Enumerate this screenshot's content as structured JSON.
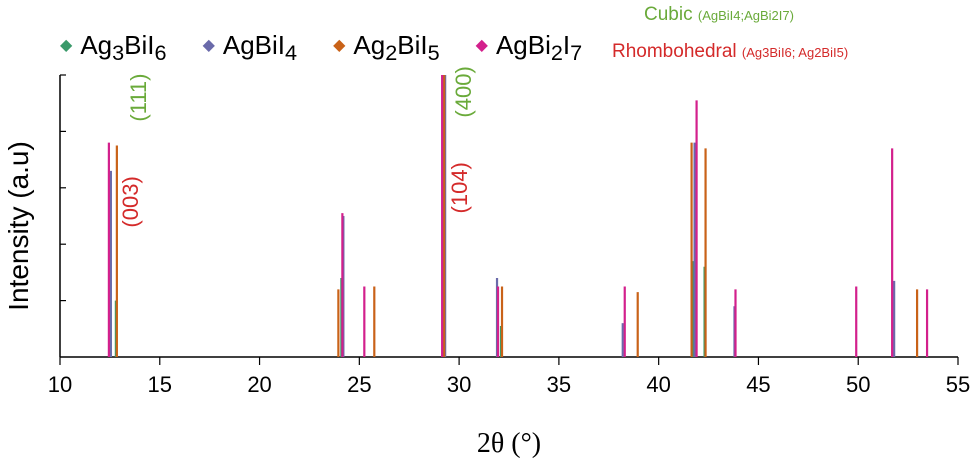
{
  "colors": {
    "Ag3BiI6": "#3a9a6a",
    "AgBiI4": "#6a6aaa",
    "Ag2BiI5": "#c96218",
    "AgBi2I7": "#d3208c",
    "cubic": "#6aaa3a",
    "rhombohedral": "#d42a2a"
  },
  "legend": [
    {
      "key": "Ag3BiI6",
      "base": "Ag",
      "sub1": "3",
      "mid": "BiI",
      "sub2": "6",
      "tail": "",
      "sub3": ""
    },
    {
      "key": "AgBiI4",
      "base": "AgBiI",
      "sub1": "4",
      "mid": "",
      "sub2": "",
      "tail": "",
      "sub3": ""
    },
    {
      "key": "Ag2BiI5",
      "base": "Ag",
      "sub1": "2",
      "mid": "BiI",
      "sub2": "5",
      "tail": "",
      "sub3": ""
    },
    {
      "key": "AgBi2I7",
      "base": "AgBi",
      "sub1": "2",
      "mid": "I",
      "sub2": "7",
      "tail": "",
      "sub3": ""
    }
  ],
  "phases": {
    "cubic_label": "Cubic",
    "cubic_detail": "(AgBiI4;AgBi2I7)",
    "rhombohedral_label": "Rhombohedral",
    "rhombohedral_detail": "(Ag3BiI6; Ag2BiI5)"
  },
  "chart_data": {
    "type": "bar",
    "xlabel": "2θ (°)",
    "ylabel": "Intensity (a.u)",
    "xlim": [
      10,
      55
    ],
    "ylim": [
      0,
      100
    ],
    "xticks": [
      10,
      15,
      20,
      25,
      30,
      35,
      40,
      45,
      50,
      55
    ],
    "series": [
      {
        "name": "Ag3BiI6",
        "x": [
          12.8,
          24.1,
          29.2,
          32.1,
          41.7,
          42.3
        ],
        "y": [
          20,
          28,
          100,
          11,
          34,
          32
        ]
      },
      {
        "name": "AgBiI4",
        "x": [
          12.55,
          24.2,
          29.3,
          31.9,
          38.2,
          41.8,
          43.8,
          51.8
        ],
        "y": [
          66,
          50,
          100,
          28,
          12,
          76,
          18,
          27
        ]
      },
      {
        "name": "Ag2BiI5",
        "x": [
          12.85,
          23.95,
          25.75,
          29.25,
          32.15,
          38.95,
          41.65,
          42.35,
          52.95
        ],
        "y": [
          75,
          24,
          25,
          100,
          25,
          23,
          76,
          74,
          24
        ]
      },
      {
        "name": "AgBi2I7",
        "x": [
          12.45,
          24.15,
          25.25,
          29.15,
          31.95,
          38.3,
          41.9,
          43.85,
          49.9,
          51.7,
          53.45
        ],
        "y": [
          76,
          51,
          25,
          100,
          25,
          25,
          91,
          24,
          25,
          74,
          24
        ]
      }
    ],
    "annotations": [
      {
        "text": "(003)",
        "x": 13.9,
        "y": 55,
        "phase": "rhombohedral"
      },
      {
        "text": "(111)",
        "x": 14.3,
        "y": 92,
        "phase": "cubic"
      },
      {
        "text": "(104)",
        "x": 30.4,
        "y": 60,
        "phase": "rhombohedral"
      },
      {
        "text": "(400)",
        "x": 30.6,
        "y": 94,
        "phase": "cubic"
      }
    ]
  }
}
